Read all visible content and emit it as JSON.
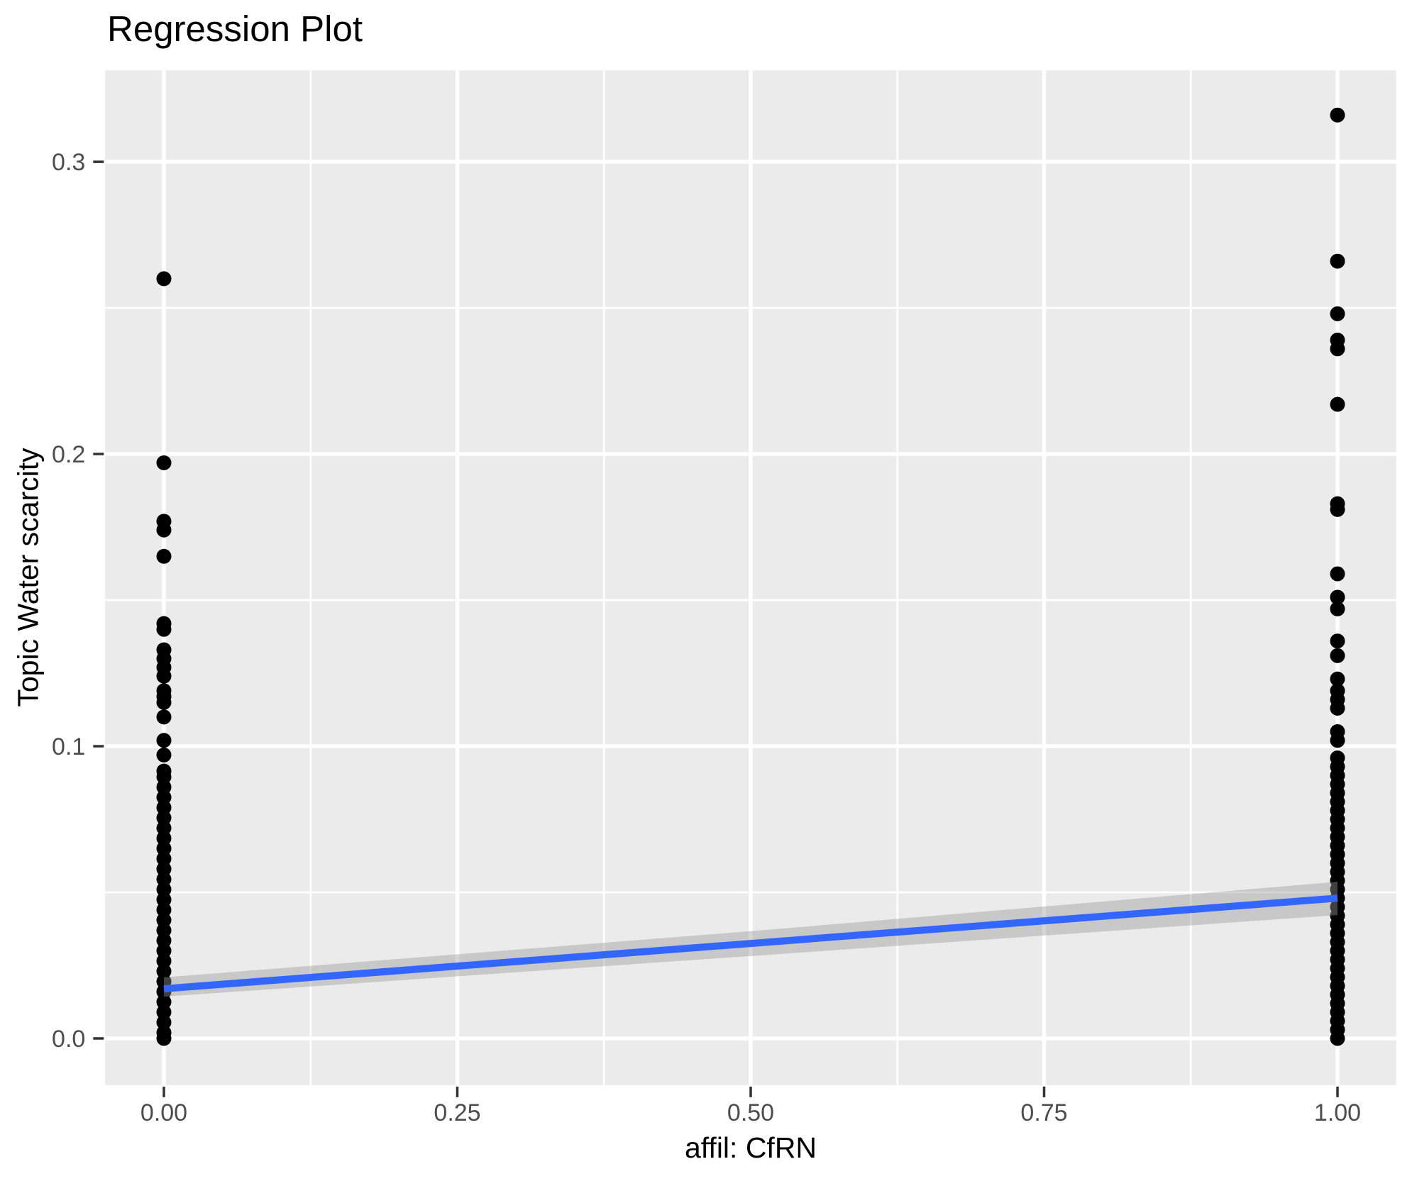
{
  "chart": {
    "title": "Regression Plot",
    "x_axis": {
      "title": "affil: CfRN",
      "tick_labels": [
        "0.00",
        "0.25",
        "0.50",
        "0.75",
        "1.00"
      ],
      "tick_values": [
        0,
        0.25,
        0.5,
        0.75,
        1.0
      ],
      "minor_values": [
        0.125,
        0.375,
        0.625,
        0.875
      ]
    },
    "y_axis": {
      "title": "Topic Water scarcity",
      "tick_labels": [
        "0.0",
        "0.1",
        "0.2",
        "0.3"
      ],
      "tick_values": [
        0,
        0.1,
        0.2,
        0.3
      ],
      "minor_values": [
        0.05,
        0.15,
        0.25
      ]
    },
    "colors": {
      "panel_background": "#EBEBEB",
      "gridline": "#FFFFFF",
      "point": "#000000",
      "regression_line": "#3366FF",
      "ci_band": "#999999",
      "tick_mark": "#333333",
      "tick_label": "#4D4D4D",
      "title_text": "#000000"
    }
  },
  "chart_data": {
    "type": "scatter",
    "title": "Regression Plot",
    "xlabel": "affil: CfRN",
    "ylabel": "Topic Water scarcity",
    "xlim": [
      -0.05,
      1.05
    ],
    "ylim": [
      -0.016,
      0.3313
    ],
    "grid": "on",
    "legend": "none",
    "series": [
      {
        "name": "affil CfRN = 0",
        "x": 0,
        "y": [
          0.26,
          0.197,
          0.177,
          0.174,
          0.165,
          0.142,
          0.14,
          0.133,
          0.13,
          0.127,
          0.124,
          0.119,
          0.117,
          0.115,
          0.11,
          0.102,
          0.097,
          0.0915,
          0.0895,
          0.086,
          0.0825,
          0.079,
          0.0755,
          0.072,
          0.0685,
          0.065,
          0.0615,
          0.058,
          0.0545,
          0.051,
          0.0475,
          0.044,
          0.0405,
          0.037,
          0.0335,
          0.03,
          0.0265,
          0.023,
          0.0195,
          0.016,
          0.0125,
          0.009,
          0.0055,
          0.002,
          0.0
        ]
      },
      {
        "name": "affil CfRN = 1",
        "x": 1,
        "y": [
          0.316,
          0.266,
          0.248,
          0.239,
          0.236,
          0.217,
          0.183,
          0.181,
          0.159,
          0.151,
          0.147,
          0.136,
          0.131,
          0.123,
          0.119,
          0.116,
          0.113,
          0.105,
          0.102,
          0.096,
          0.093,
          0.09,
          0.087,
          0.084,
          0.081,
          0.078,
          0.075,
          0.072,
          0.069,
          0.066,
          0.063,
          0.06,
          0.057,
          0.054,
          0.051,
          0.048,
          0.045,
          0.042,
          0.039,
          0.036,
          0.033,
          0.03,
          0.027,
          0.024,
          0.021,
          0.018,
          0.015,
          0.012,
          0.009,
          0.006,
          0.003,
          0.0
        ]
      }
    ],
    "regression_line": {
      "x": [
        0,
        1
      ],
      "y": [
        0.017,
        0.048
      ]
    },
    "ci_band": {
      "x": [
        0,
        0.5,
        1
      ],
      "upper": [
        0.0209,
        0.0367,
        0.0536
      ],
      "lower": [
        0.0143,
        0.0282,
        0.0422
      ]
    }
  }
}
